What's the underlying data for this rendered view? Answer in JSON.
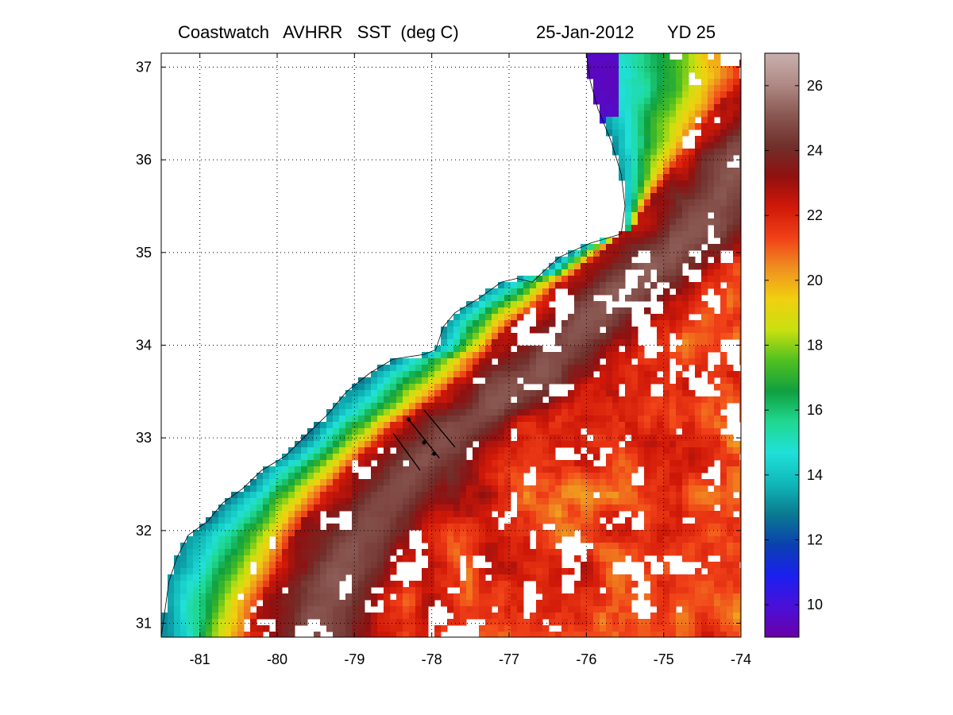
{
  "title": {
    "main": "Coastwatch   AVHRR   SST  (deg C)",
    "date": "25-Jan-2012",
    "yearday": "YD 25"
  },
  "chart_data": {
    "type": "heatmap",
    "variable": "Sea surface temperature",
    "units": "deg C",
    "xlim": [
      -81.5,
      -74
    ],
    "ylim": [
      30.85,
      37.15
    ],
    "x_ticks": [
      -81,
      -80,
      -79,
      -78,
      -77,
      -76,
      -75,
      -74
    ],
    "y_ticks": [
      31,
      32,
      33,
      34,
      35,
      36,
      37
    ],
    "grid": true,
    "colorbar": {
      "range": [
        9,
        27
      ],
      "ticks": [
        10,
        12,
        14,
        16,
        18,
        20,
        22,
        24,
        26
      ],
      "colormap": [
        "#6a00a8",
        "#4a10d8",
        "#1a20f0",
        "#0a40b0",
        "#0a7a90",
        "#10b8b8",
        "#20e0d8",
        "#20d890",
        "#10a040",
        "#50c020",
        "#c8e010",
        "#f0d010",
        "#f09020",
        "#f04018",
        "#d01808",
        "#901010",
        "#70302c",
        "#8a5852",
        "#b08a86",
        "#c8b0ac"
      ],
      "position": "right"
    },
    "sst_field": {
      "land_color": "#ffffff",
      "cloud_color": "#ffffff",
      "nearshore_temp_range": [
        13,
        16
      ],
      "midshelf_temp_range": [
        16,
        20
      ],
      "gulf_stream_core_temp": 25,
      "offshore_temp_range": [
        20,
        23
      ],
      "pamlico_sound_temp": 10,
      "chesapeake_region_temp": 9
    },
    "transects": [
      {
        "from": [
          -78.3,
          33.2
        ],
        "to": [
          -77.9,
          32.78
        ],
        "markers": [
          [
            -78.3,
            33.2
          ],
          [
            -78.1,
            32.95
          ],
          [
            -77.97,
            32.83
          ]
        ]
      },
      {
        "from": [
          -78.1,
          33.3
        ],
        "to": [
          -77.7,
          32.9
        ]
      },
      {
        "from": [
          -78.5,
          33.05
        ],
        "to": [
          -78.15,
          32.65
        ]
      }
    ]
  }
}
